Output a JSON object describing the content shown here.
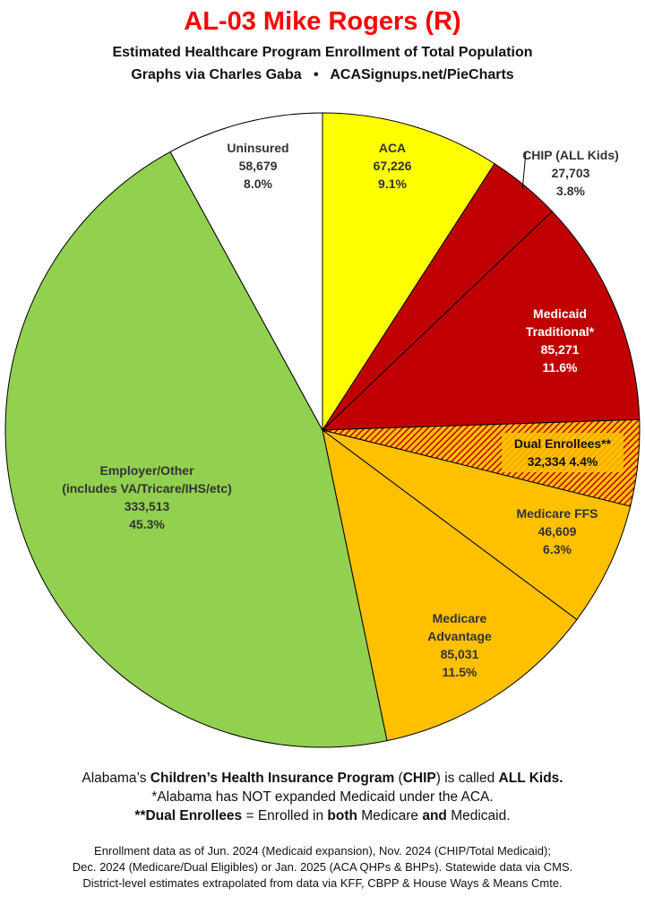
{
  "header": {
    "title": "AL-03 Mike Rogers (R)",
    "subtitle": "Estimated Healthcare Program Enrollment of Total Population",
    "credit_left": "Graphs via Charles Gaba",
    "bullet": "•",
    "credit_right": "ACASignups.net/PieCharts"
  },
  "chart_data": {
    "type": "pie",
    "start_angle_deg": 0,
    "direction": "clockwise",
    "slices": [
      {
        "name": "ACA",
        "value": 67226,
        "value_label": "67,226",
        "percent": "9.1%",
        "color": "#ffff00",
        "text_color": "#333333"
      },
      {
        "name": "CHIP (ALL Kids)",
        "value": 27703,
        "value_label": "27,703",
        "percent": "3.8%",
        "color": "#c00000",
        "text_color": "#333333",
        "label_outside": true
      },
      {
        "name": "Medicaid Traditional*",
        "name_lines": [
          "Medicaid",
          "Traditional*"
        ],
        "value": 85271,
        "value_label": "85,271",
        "percent": "11.6%",
        "color": "#c00000",
        "text_color": "#ffffff"
      },
      {
        "name": "Dual Enrollees**",
        "value": 32334,
        "value_label": "32,334",
        "percent": "4.4%",
        "color": "#d84a00",
        "pattern": "hatched",
        "text_color": "#111111",
        "boxed": true
      },
      {
        "name": "Medicare FFS",
        "value": 46609,
        "value_label": "46,609",
        "percent": "6.3%",
        "color": "#ffc000",
        "text_color": "#333333"
      },
      {
        "name": "Medicare Advantage",
        "name_lines": [
          "Medicare",
          "Advantage"
        ],
        "value": 85031,
        "value_label": "85,031",
        "percent": "11.5%",
        "color": "#ffc000",
        "text_color": "#333333"
      },
      {
        "name": "Employer/Other (includes VA/Tricare/IHS/etc)",
        "name_lines": [
          "Employer/Other",
          "(includes VA/Tricare/IHS/etc)"
        ],
        "value": 333513,
        "value_label": "333,513",
        "percent": "45.3%",
        "color": "#92d050",
        "text_color": "#333333"
      },
      {
        "name": "Uninsured",
        "value": 58679,
        "value_label": "58,679",
        "percent": "8.0%",
        "color": "#ffffff",
        "text_color": "#333333"
      }
    ]
  },
  "notes": {
    "line1_pre": "Alabama’s ",
    "line1_bold": "Children’s Health Insurance Program",
    "line1_mid": " (",
    "line1_bold2": "CHIP",
    "line1_mid2": ") is called ",
    "line1_bold3": "ALL Kids.",
    "line2": "*Alabama has NOT expanded Medicaid under the ACA.",
    "line3_bold": "**Dual Enrollees",
    "line3_mid": " = Enrolled in ",
    "line3_bold2": "both",
    "line3_mid2": " Medicare ",
    "line3_bold3": "and",
    "line3_end": " Medicaid."
  },
  "footer": {
    "line1": "Enrollment data as of Jun. 2024 (Medicaid expansion), Nov. 2024 (CHIP/Total Medicaid);",
    "line2": "Dec. 2024 (Medicare/Dual Eligibles) or Jan. 2025 (ACA QHPs & BHPs). Statewide data via CMS.",
    "line3": "District-level estimates extrapolated from data via KFF, CBPP & House Ways & Means Cmte."
  }
}
